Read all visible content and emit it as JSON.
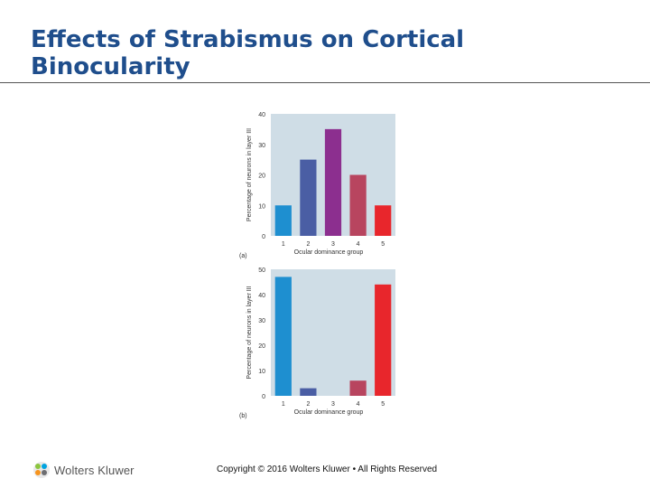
{
  "slide": {
    "title": "Effects of Strabismus on Cortical Binocularity",
    "copyright": "Copyright © 2016 Wolters Kluwer • All Rights Reserved",
    "logo_text": "Wolters Kluwer"
  },
  "colors": {
    "title": "#1f4e8c",
    "plot_background": "#cfdde6",
    "bars": [
      "#1e8fd0",
      "#4a5ea4",
      "#8c2f8f",
      "#b8455f",
      "#e8262c"
    ]
  },
  "chart_data": [
    {
      "type": "bar",
      "panel_label": "(a)",
      "categories": [
        "1",
        "2",
        "3",
        "4",
        "5"
      ],
      "values": [
        10,
        25,
        35,
        20,
        10
      ],
      "xlabel": "Ocular dominance group",
      "ylabel": "Percentage of neurons in layer III",
      "ylim": [
        0,
        40
      ],
      "yticks": [
        "0",
        "10",
        "20",
        "30",
        "40"
      ],
      "grid": false
    },
    {
      "type": "bar",
      "panel_label": "(b)",
      "categories": [
        "1",
        "2",
        "3",
        "4",
        "5"
      ],
      "values": [
        47,
        3,
        0,
        6,
        44
      ],
      "xlabel": "Ocular dominance group",
      "ylabel": "Percentage of neurons in layer III",
      "ylim": [
        0,
        50
      ],
      "yticks": [
        "0",
        "10",
        "20",
        "30",
        "40",
        "50"
      ],
      "grid": false
    }
  ]
}
